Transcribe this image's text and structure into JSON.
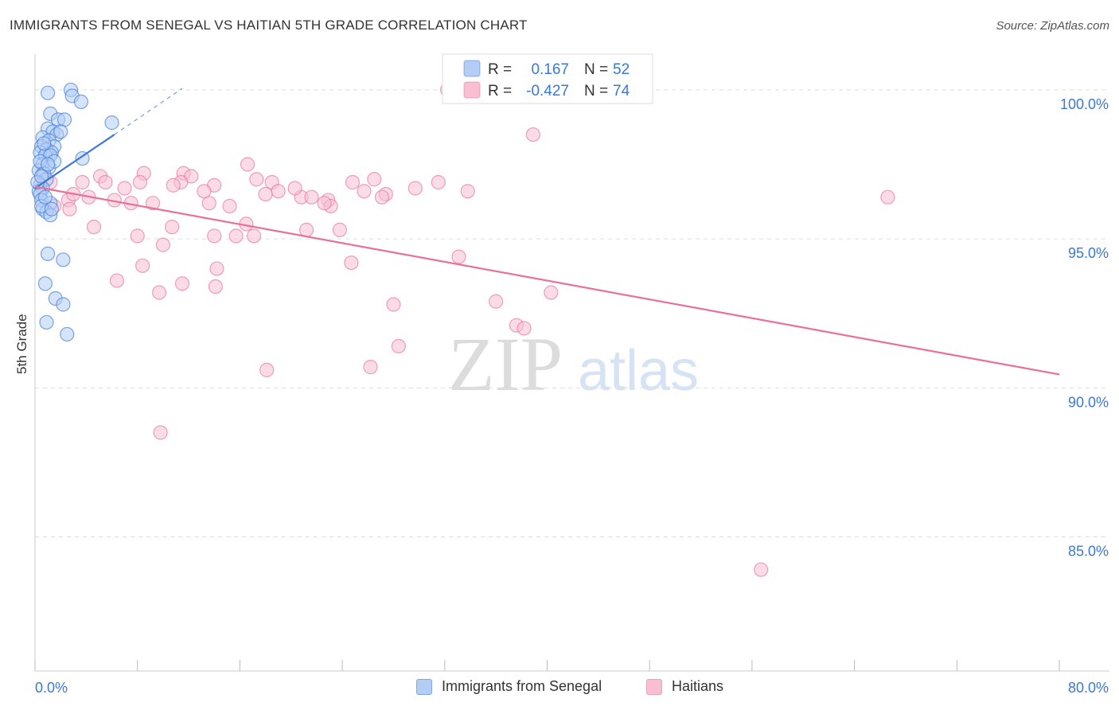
{
  "header": {
    "title": "IMMIGRANTS FROM SENEGAL VS HAITIAN 5TH GRADE CORRELATION CHART",
    "source": "Source: ZipAtlas.com"
  },
  "colors": {
    "blue": "#3b78d6",
    "blue_fill": "#b4cdf5",
    "pink": "#e8709a",
    "pink_fill": "#f7bfd1",
    "axis_text": "#3b78d6",
    "grid": "#dddddd"
  },
  "chart_data": {
    "type": "scatter",
    "title": "IMMIGRANTS FROM SENEGAL VS HAITIAN 5TH GRADE CORRELATION CHART",
    "xlabel": "",
    "ylabel": "5th Grade",
    "xlim": [
      0,
      80
    ],
    "ylim": [
      80.5,
      101.2
    ],
    "x_tick_labels": [
      "0.0%",
      "80.0%"
    ],
    "y_ticks": [
      85,
      90,
      95,
      100
    ],
    "y_tick_labels": [
      "85.0%",
      "90.0%",
      "95.0%",
      "100.0%"
    ],
    "grid": true,
    "legend_position": "top-center",
    "legend": [
      {
        "r_label": "R =",
        "r_value": "0.167",
        "n_label": "N =",
        "n_value": "52"
      },
      {
        "r_label": "R =",
        "r_value": "-0.427",
        "n_label": "N =",
        "n_value": "74"
      }
    ],
    "watermark": {
      "zip": "ZIP",
      "atlas": "atlas"
    },
    "series": [
      {
        "name": "Immigrants from Senegal",
        "color": "#3b78d6",
        "fill": "#b4cdf5",
        "trend": {
          "x": [
            0,
            6.2
          ],
          "y": [
            96.7,
            98.5
          ],
          "dashed_to_x": 11.5,
          "dashed_to_y": 100.05
        },
        "points": [
          [
            1.0,
            99.9
          ],
          [
            2.8,
            100.0
          ],
          [
            2.9,
            99.8
          ],
          [
            3.6,
            99.6
          ],
          [
            1.2,
            99.2
          ],
          [
            1.8,
            99.0
          ],
          [
            2.3,
            99.0
          ],
          [
            6.0,
            98.9
          ],
          [
            1.0,
            98.7
          ],
          [
            1.4,
            98.6
          ],
          [
            1.7,
            98.5
          ],
          [
            0.6,
            98.4
          ],
          [
            1.1,
            98.3
          ],
          [
            1.5,
            98.1
          ],
          [
            0.5,
            98.1
          ],
          [
            0.9,
            98.0
          ],
          [
            1.3,
            97.9
          ],
          [
            0.4,
            97.9
          ],
          [
            0.8,
            97.8
          ],
          [
            1.2,
            97.8
          ],
          [
            3.7,
            97.7
          ],
          [
            0.6,
            97.5
          ],
          [
            1.1,
            97.4
          ],
          [
            0.3,
            97.3
          ],
          [
            0.7,
            97.2
          ],
          [
            0.9,
            97.0
          ],
          [
            0.4,
            96.8
          ],
          [
            0.6,
            96.7
          ],
          [
            0.3,
            96.6
          ],
          [
            0.4,
            96.5
          ],
          [
            0.5,
            96.3
          ],
          [
            1.2,
            96.2
          ],
          [
            0.6,
            96.0
          ],
          [
            0.9,
            95.9
          ],
          [
            1.2,
            95.8
          ],
          [
            0.5,
            96.1
          ],
          [
            1.0,
            94.5
          ],
          [
            2.2,
            94.3
          ],
          [
            0.8,
            93.5
          ],
          [
            1.6,
            93.0
          ],
          [
            2.2,
            92.8
          ],
          [
            0.9,
            92.2
          ],
          [
            2.5,
            91.8
          ],
          [
            0.4,
            97.6
          ],
          [
            0.7,
            98.2
          ],
          [
            1.5,
            97.6
          ],
          [
            0.2,
            96.9
          ],
          [
            0.8,
            96.4
          ],
          [
            1.3,
            96.0
          ],
          [
            0.5,
            97.1
          ],
          [
            2.0,
            98.6
          ],
          [
            1.0,
            97.5
          ]
        ]
      },
      {
        "name": "Haitians",
        "color": "#e8709a",
        "fill": "#f7bfd1",
        "trend": {
          "x": [
            0,
            80
          ],
          "y": [
            96.75,
            90.45
          ]
        },
        "points": [
          [
            32.2,
            100.0
          ],
          [
            38.9,
            98.5
          ],
          [
            16.6,
            97.5
          ],
          [
            8.5,
            97.2
          ],
          [
            5.1,
            97.1
          ],
          [
            11.6,
            97.2
          ],
          [
            12.2,
            97.1
          ],
          [
            0.6,
            97.2
          ],
          [
            1.2,
            96.9
          ],
          [
            3.7,
            96.9
          ],
          [
            5.5,
            96.9
          ],
          [
            7.0,
            96.7
          ],
          [
            8.2,
            96.9
          ],
          [
            11.4,
            96.9
          ],
          [
            10.8,
            96.8
          ],
          [
            14.0,
            96.8
          ],
          [
            18.5,
            96.9
          ],
          [
            17.3,
            97.0
          ],
          [
            19.0,
            96.6
          ],
          [
            20.8,
            96.4
          ],
          [
            21.6,
            96.4
          ],
          [
            20.3,
            96.7
          ],
          [
            22.9,
            96.3
          ],
          [
            23.1,
            96.1
          ],
          [
            24.8,
            96.9
          ],
          [
            25.7,
            96.6
          ],
          [
            27.4,
            96.5
          ],
          [
            18.0,
            96.5
          ],
          [
            6.2,
            96.3
          ],
          [
            4.2,
            96.4
          ],
          [
            2.6,
            96.3
          ],
          [
            2.7,
            96.0
          ],
          [
            7.5,
            96.2
          ],
          [
            9.2,
            96.2
          ],
          [
            13.6,
            96.2
          ],
          [
            15.2,
            96.1
          ],
          [
            22.6,
            96.2
          ],
          [
            26.5,
            97.0
          ],
          [
            29.7,
            96.7
          ],
          [
            33.8,
            96.6
          ],
          [
            4.6,
            95.4
          ],
          [
            8.0,
            95.1
          ],
          [
            10.7,
            95.4
          ],
          [
            14.0,
            95.1
          ],
          [
            15.7,
            95.1
          ],
          [
            16.5,
            95.5
          ],
          [
            17.1,
            95.1
          ],
          [
            21.2,
            95.3
          ],
          [
            23.8,
            95.3
          ],
          [
            10.0,
            94.8
          ],
          [
            8.4,
            94.1
          ],
          [
            14.2,
            94.0
          ],
          [
            24.7,
            94.2
          ],
          [
            33.1,
            94.4
          ],
          [
            6.4,
            93.6
          ],
          [
            9.7,
            93.2
          ],
          [
            11.5,
            93.5
          ],
          [
            14.1,
            93.4
          ],
          [
            28.0,
            92.8
          ],
          [
            36.0,
            92.9
          ],
          [
            37.6,
            92.1
          ],
          [
            38.2,
            92.0
          ],
          [
            40.3,
            93.2
          ],
          [
            28.4,
            91.4
          ],
          [
            18.1,
            90.6
          ],
          [
            26.2,
            90.7
          ],
          [
            9.8,
            88.5
          ],
          [
            56.7,
            83.9
          ],
          [
            66.6,
            96.4
          ],
          [
            27.1,
            96.4
          ],
          [
            3.0,
            96.5
          ],
          [
            1.5,
            96.1
          ],
          [
            13.2,
            96.6
          ],
          [
            31.5,
            96.9
          ]
        ]
      }
    ]
  },
  "bottom_legend": {
    "items": [
      {
        "label": "Immigrants from Senegal"
      },
      {
        "label": "Haitians"
      }
    ]
  }
}
